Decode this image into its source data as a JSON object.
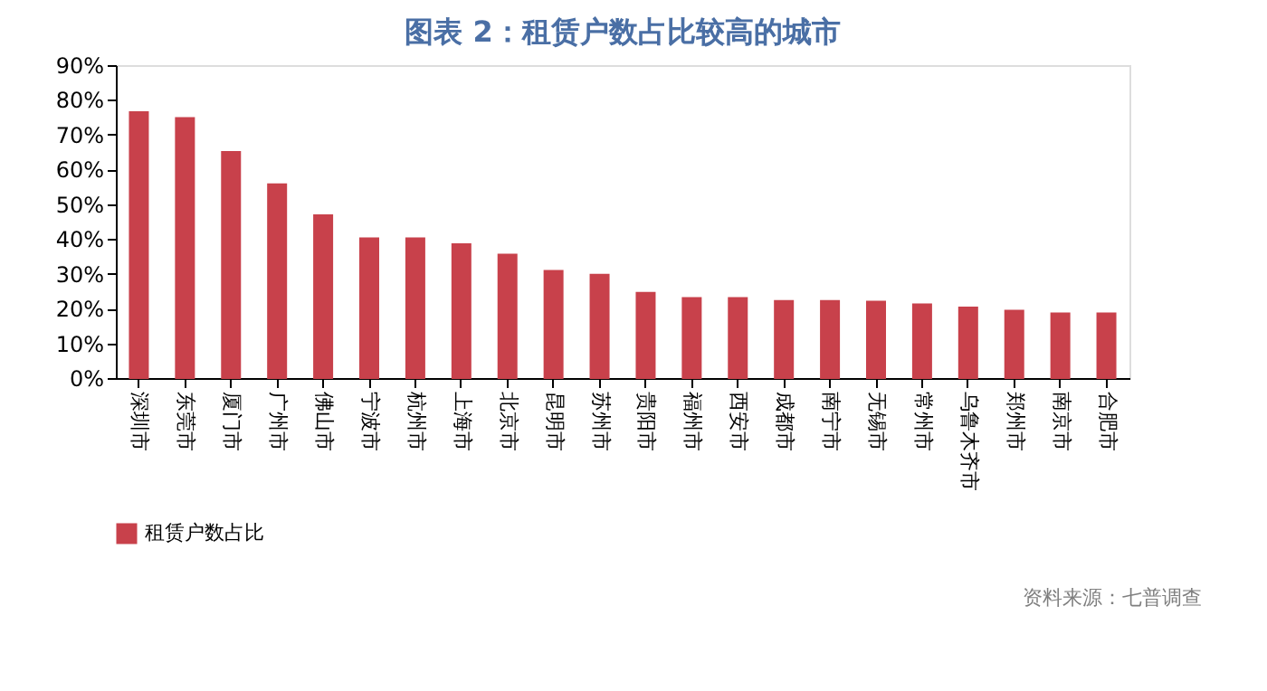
{
  "chart_data": {
    "type": "bar",
    "title": "图表 2：租赁户数占比较高的城市",
    "categories": [
      "深圳市",
      "东莞市",
      "厦门市",
      "广州市",
      "佛山市",
      "宁波市",
      "杭州市",
      "上海市",
      "北京市",
      "昆明市",
      "苏州市",
      "贵阳市",
      "福州市",
      "西安市",
      "成都市",
      "南宁市",
      "无锡市",
      "常州市",
      "乌鲁木齐市",
      "郑州市",
      "南京市",
      "合肥市"
    ],
    "series": [
      {
        "name": "租赁户数占比",
        "color": "#c8414b",
        "values": [
          76.5,
          74.8,
          65,
          55.7,
          46.8,
          40.2,
          40.2,
          38.5,
          35.5,
          30.8,
          29.7,
          24.5,
          23,
          23,
          22.2,
          22.2,
          22,
          21.2,
          20.3,
          19.4,
          18.6,
          18.6
        ]
      }
    ],
    "ylim": [
      0,
      90
    ],
    "yticks": [
      {
        "value": 0,
        "label": "0%"
      },
      {
        "value": 10,
        "label": "10%"
      },
      {
        "value": 20,
        "label": "20%"
      },
      {
        "value": 30,
        "label": "30%"
      },
      {
        "value": 40,
        "label": "40%"
      },
      {
        "value": 50,
        "label": "50%"
      },
      {
        "value": 60,
        "label": "60%"
      },
      {
        "value": 70,
        "label": "70%"
      },
      {
        "value": 80,
        "label": "80%"
      },
      {
        "value": 90,
        "label": "90%"
      }
    ],
    "grid": false,
    "legend": "bottom",
    "annotations": [
      "资料来源：七普调查"
    ]
  }
}
